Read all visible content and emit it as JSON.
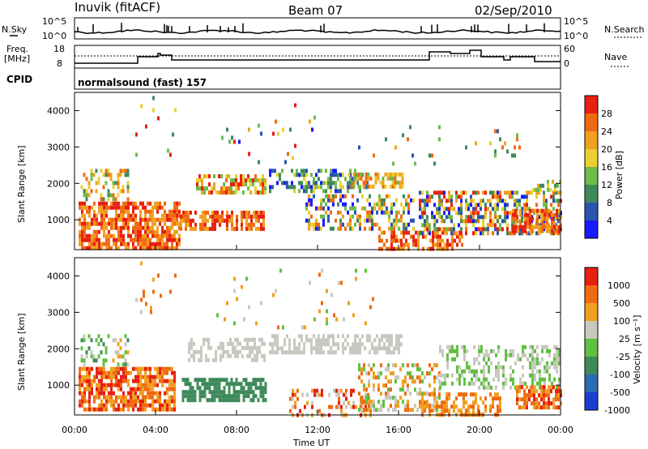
{
  "header": {
    "station": "Inuvik (fitACF)",
    "beam": "Beam 07",
    "date": "02/Sep/2010"
  },
  "noise_panel": {
    "left_label": "N.Sky",
    "right_label": "N.Search",
    "left_ticks": [
      "10^5",
      "10^0"
    ],
    "right_ticks": [
      "10^5",
      "10^0"
    ]
  },
  "freq_panel": {
    "left_label_1": "Freq.",
    "left_label_2": "[MHz]",
    "left_ticks": [
      "18",
      "8"
    ],
    "right_label": "Nave",
    "right_ticks": [
      "60",
      "0"
    ]
  },
  "cpid": {
    "label": "CPID",
    "value": "normalsound (fast) 157"
  },
  "chart_data": [
    {
      "type": "heatmap",
      "name": "power",
      "ylabel": "Slant Range [km]",
      "ylim": [
        180,
        4500
      ],
      "yticks": [
        "1000",
        "2000",
        "3000",
        "4000"
      ],
      "xlim_hours": [
        0,
        24
      ],
      "colorbar_label": "Power [dB]",
      "colorbar_ticks": [
        "28",
        "24",
        "20",
        "16",
        "12",
        "8",
        "4"
      ],
      "colors": [
        "#1a1aff",
        "#2a55b0",
        "#3f8a5a",
        "#6dbb4a",
        "#e8d030",
        "#f0a020",
        "#f06a10",
        "#e82010"
      ]
    },
    {
      "type": "heatmap",
      "name": "velocity",
      "ylabel": "Slant Range [km]",
      "ylim": [
        180,
        4500
      ],
      "yticks": [
        "1000",
        "2000",
        "3000",
        "4000"
      ],
      "xlim_hours": [
        0,
        24
      ],
      "colorbar_label": "Velocity [m s⁻¹]",
      "colorbar_ticks": [
        "1000",
        "500",
        "100",
        "25",
        "-25",
        "-100",
        "-500",
        "-1000"
      ],
      "colors": [
        "#1a3fd0",
        "#2a6ab0",
        "#3f8a5a",
        "#60c040",
        "#c8c8c0",
        "#f0a020",
        "#f06a10",
        "#e82010"
      ]
    }
  ],
  "xaxis": {
    "label": "Time UT",
    "ticks": [
      "00:00",
      "04:00",
      "08:00",
      "12:00",
      "16:00",
      "20:00",
      "00:00"
    ]
  }
}
